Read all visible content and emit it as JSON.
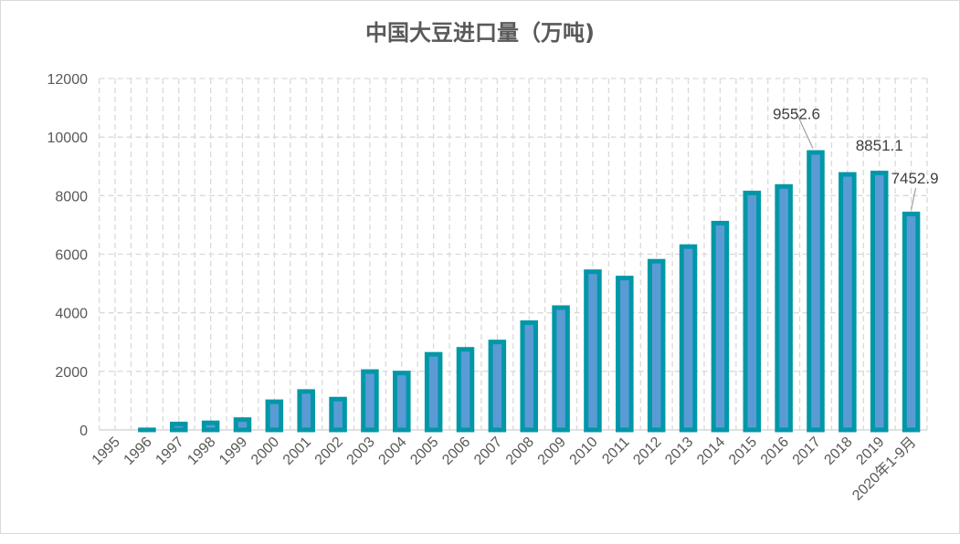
{
  "chart_data": {
    "type": "bar",
    "title": "中国大豆进口量（万吨)",
    "xlabel": "",
    "ylabel": "",
    "categories": [
      "1995",
      "1996",
      "1997",
      "1998",
      "1999",
      "2000",
      "2001",
      "2002",
      "2003",
      "2004",
      "2005",
      "2006",
      "2007",
      "2008",
      "2009",
      "2010",
      "2011",
      "2012",
      "2013",
      "2014",
      "2015",
      "2016",
      "2017",
      "2018",
      "2019",
      "2020年1-9月"
    ],
    "values": [
      30,
      80,
      280,
      320,
      430,
      1040,
      1390,
      1130,
      2070,
      2020,
      2660,
      2830,
      3080,
      3740,
      4255,
      5480,
      5264,
      5838,
      6338,
      7140,
      8169,
      8391,
      9552.6,
      8803,
      8851.1,
      7452.9
    ],
    "data_labels": [
      {
        "category": "2017",
        "text": "9552.6"
      },
      {
        "category": "2019",
        "text": "8851.1"
      },
      {
        "category": "2020年1-9月",
        "text": "7452.9"
      }
    ],
    "ylim": [
      0,
      12000
    ],
    "yticks": [
      0,
      2000,
      4000,
      6000,
      8000,
      10000,
      12000
    ],
    "grid": "dashed horizontal and vertical",
    "legend": "none",
    "colors": {
      "bar_fill": "#5b9bd5",
      "bar_border": "#0097a7",
      "grid": "#d9d9d9",
      "text": "#595959"
    }
  }
}
